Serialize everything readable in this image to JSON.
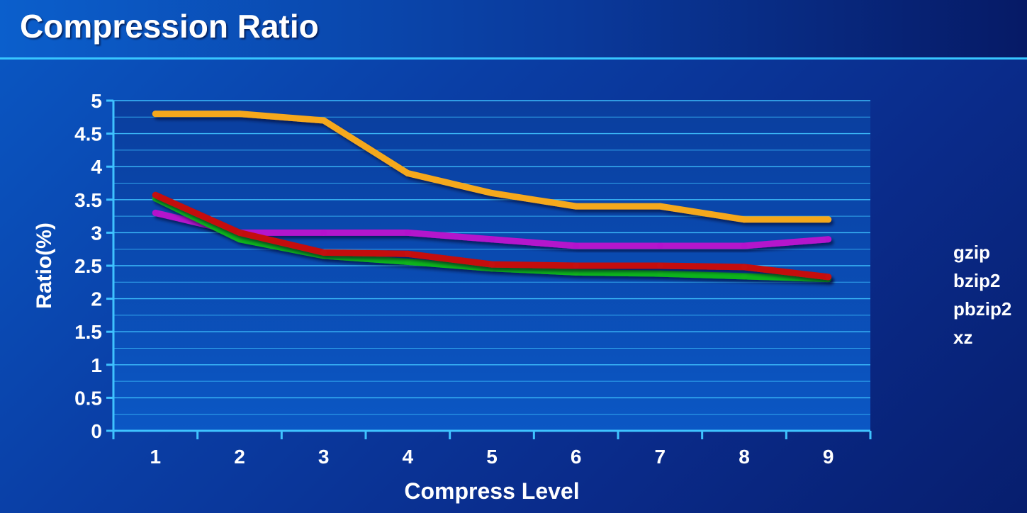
{
  "slide": {
    "title": "Compression Ratio"
  },
  "colors": {
    "gzip": "#f5a81d",
    "bzip2": "#11b31c",
    "pbzip2": "#c41010",
    "xz": "#b412cc",
    "grid": "#3fc3ff",
    "plot_bg_top": "#0a3e9e",
    "plot_bg_bottom": "#0b57c4"
  },
  "chart_data": {
    "type": "line",
    "title": "Compression Ratio",
    "xlabel": "Compress Level",
    "ylabel": "Ratio(%)",
    "categories": [
      "1",
      "2",
      "3",
      "4",
      "5",
      "6",
      "7",
      "8",
      "9"
    ],
    "ylim": [
      0,
      5
    ],
    "yticks": [
      0,
      0.5,
      1,
      1.5,
      2,
      2.5,
      3,
      3.5,
      4,
      4.5,
      5
    ],
    "ytick_labels": [
      "0",
      "0.5",
      "1",
      "1.5",
      "2",
      "2.5",
      "3",
      "3.5",
      "4",
      "4.5",
      "5"
    ],
    "grid": true,
    "legend_position": "right",
    "series": [
      {
        "name": "gzip",
        "values": [
          4.8,
          4.8,
          4.7,
          3.9,
          3.6,
          3.4,
          3.4,
          3.2,
          3.2
        ]
      },
      {
        "name": "bzip2",
        "values": [
          3.52,
          2.9,
          2.65,
          2.56,
          2.46,
          2.4,
          2.38,
          2.34,
          2.3
        ]
      },
      {
        "name": "pbzip2",
        "values": [
          3.57,
          3.0,
          2.7,
          2.68,
          2.52,
          2.5,
          2.5,
          2.48,
          2.33
        ]
      },
      {
        "name": "xz",
        "values": [
          3.3,
          3.0,
          3.0,
          3.0,
          2.9,
          2.8,
          2.8,
          2.8,
          2.9
        ]
      }
    ]
  }
}
